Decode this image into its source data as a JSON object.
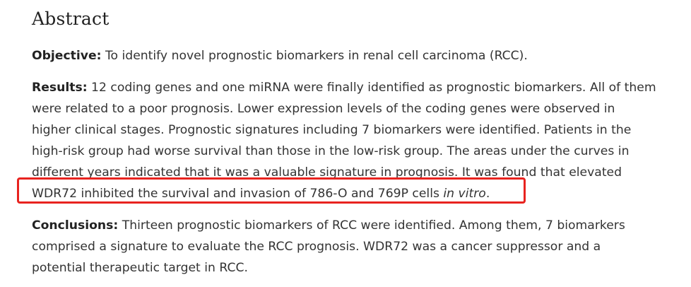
{
  "abstract": {
    "heading": "Abstract",
    "objective": {
      "label": "Objective:",
      "text": " To identify novel prognostic biomarkers in renal cell carcinoma (RCC)."
    },
    "results": {
      "label": "Results:",
      "line1": " 12 coding genes and one miRNA were finally identified as prognostic biomarkers. All of them",
      "line2": "were related to a poor prognosis. Lower expression levels of the coding genes were observed in",
      "line3": "higher clinical stages. Prognostic signatures including 7 biomarkers were identified. Patients in the",
      "line4": "high-risk group had worse survival than those in the low-risk group. The areas under the curves in",
      "line5": "different years indicated that it was a valuable signature in prognosis. It was found that elevated",
      "line6_main": "WDR72 inhibited the survival and invasion of 786-O and 769P cells ",
      "line6_italic": "in vitro",
      "line6_end": "."
    },
    "conclusions": {
      "label": "Conclusions:",
      "line1": " Thirteen prognostic biomarkers of RCC were identified. Among them, 7 biomarkers",
      "line2": "comprised a signature to evaluate the RCC prognosis. WDR72 was a cancer suppressor and a",
      "line3": "potential therapeutic target in RCC."
    }
  },
  "colors": {
    "highlight_border": "#e8231f",
    "text": "#333333"
  }
}
